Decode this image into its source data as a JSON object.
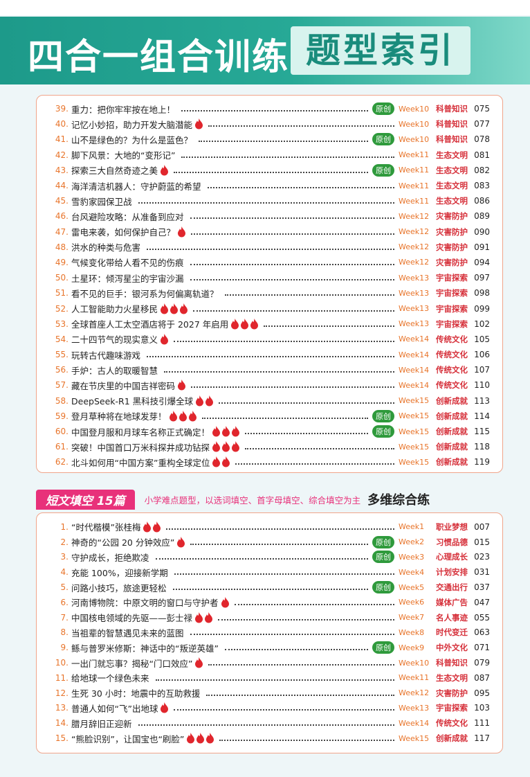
{
  "header": {
    "title": "四合一组合训练",
    "subtitle": "题型索引"
  },
  "section1": {
    "entries": [
      {
        "no": "39.",
        "title": "重力：把你牢牢按在地上！",
        "flames": 0,
        "badge": "原创",
        "week": "Week10",
        "topic": "科普知识",
        "page": "075"
      },
      {
        "no": "40.",
        "title": "记忆小妙招，助力开发大脑潜能",
        "flames": 1,
        "week": "Week10",
        "topic": "科普知识",
        "page": "077"
      },
      {
        "no": "41.",
        "title": "山不是绿色的？为什么是蓝色？",
        "flames": 0,
        "badge": "原创",
        "week": "Week10",
        "topic": "科普知识",
        "page": "078"
      },
      {
        "no": "42.",
        "title": "脚下风景：大地的“变形记”",
        "flames": 0,
        "week": "Week11",
        "topic": "生态文明",
        "page": "081"
      },
      {
        "no": "43.",
        "title": "探索三大自然奇迹之美",
        "flames": 1,
        "badge": "原创",
        "week": "Week11",
        "topic": "生态文明",
        "page": "082"
      },
      {
        "no": "44.",
        "title": "海洋清洁机器人：守护蔚蓝的希望",
        "flames": 0,
        "week": "Week11",
        "topic": "生态文明",
        "page": "083"
      },
      {
        "no": "45.",
        "title": "雪豹家园保卫战",
        "flames": 0,
        "week": "Week11",
        "topic": "生态文明",
        "page": "086"
      },
      {
        "no": "46.",
        "title": "台风避险攻略：从准备到应对",
        "flames": 0,
        "week": "Week12",
        "topic": "灾害防护",
        "page": "089"
      },
      {
        "no": "47.",
        "title": "雷电来袭，如何保护自己？",
        "flames": 1,
        "week": "Week12",
        "topic": "灾害防护",
        "page": "090"
      },
      {
        "no": "48.",
        "title": "洪水的种类与危害",
        "flames": 0,
        "week": "Week12",
        "topic": "灾害防护",
        "page": "091"
      },
      {
        "no": "49.",
        "title": "气候变化带给人看不见的伤痕",
        "flames": 0,
        "week": "Week12",
        "topic": "灾害防护",
        "page": "094"
      },
      {
        "no": "50.",
        "title": "土星环：倾泻星尘的宇宙沙漏",
        "flames": 0,
        "week": "Week13",
        "topic": "宇宙探索",
        "page": "097"
      },
      {
        "no": "51.",
        "title": "看不见的巨手：银河系为何偏离轨道？",
        "flames": 0,
        "week": "Week13",
        "topic": "宇宙探索",
        "page": "098"
      },
      {
        "no": "52.",
        "title": "人工智能助力火星移民",
        "flames": 3,
        "week": "Week13",
        "topic": "宇宙探索",
        "page": "099"
      },
      {
        "no": "53.",
        "title": "全球首座人工太空酒店将于 2027 年启用",
        "flames": 3,
        "week": "Week13",
        "topic": "宇宙探索",
        "page": "102"
      },
      {
        "no": "54.",
        "title": "二十四节气的现实意义",
        "flames": 1,
        "week": "Week14",
        "topic": "传统文化",
        "page": "105"
      },
      {
        "no": "55.",
        "title": "玩转古代趣味游戏",
        "flames": 0,
        "week": "Week14",
        "topic": "传统文化",
        "page": "106"
      },
      {
        "no": "56.",
        "title": "手炉：古人的取暖智慧",
        "flames": 0,
        "week": "Week14",
        "topic": "传统文化",
        "page": "107"
      },
      {
        "no": "57.",
        "title": "藏在节庆里的中国吉祥密码",
        "flames": 1,
        "week": "Week14",
        "topic": "传统文化",
        "page": "110"
      },
      {
        "no": "58.",
        "title": "DeepSeek-R1 黑科技引爆全球",
        "flames": 2,
        "week": "Week15",
        "topic": "创新成就",
        "page": "113"
      },
      {
        "no": "59.",
        "title": "登月草种将在地球发芽！",
        "flames": 3,
        "badge": "原创",
        "week": "Week15",
        "topic": "创新成就",
        "page": "114"
      },
      {
        "no": "60.",
        "title": "中国登月服和月球车名称正式确定！",
        "flames": 3,
        "badge": "原创",
        "week": "Week15",
        "topic": "创新成就",
        "page": "115"
      },
      {
        "no": "61.",
        "title": "突破！中国首口万米科探井成功钻探",
        "flames": 3,
        "week": "Week15",
        "topic": "创新成就",
        "page": "118"
      },
      {
        "no": "62.",
        "title": "北斗如何用“中国方案”重构全球定位",
        "flames": 2,
        "week": "Week15",
        "topic": "创新成就",
        "page": "119"
      }
    ]
  },
  "section2": {
    "banner": {
      "label": "短文填空 15篇",
      "description": "小学难点题型，以选词填空、首字母填空、综合填空为主",
      "tag": "多维综合练"
    },
    "entries": [
      {
        "no": "1.",
        "title": "“时代楷模”张桂梅",
        "flames": 2,
        "week": "Week1",
        "topic": "职业梦想",
        "page": "007"
      },
      {
        "no": "2.",
        "title": "神奇的“公园 20 分钟效应”",
        "flames": 1,
        "badge": "原创",
        "week": "Week2",
        "topic": "习惯品德",
        "page": "015"
      },
      {
        "no": "3.",
        "title": "守护成长，拒绝欺凌",
        "flames": 0,
        "badge": "原创",
        "week": "Week3",
        "topic": "心理成长",
        "page": "023"
      },
      {
        "no": "4.",
        "title": "充能 100%，迎接新学期",
        "flames": 0,
        "week": "Week4",
        "topic": "计划安排",
        "page": "031"
      },
      {
        "no": "5.",
        "title": "问路小技巧，旅途更轻松",
        "flames": 0,
        "badge": "原创",
        "week": "Week5",
        "topic": "交通出行",
        "page": "037"
      },
      {
        "no": "6.",
        "title": "河南博物院：中原文明的窗口与守护者",
        "flames": 1,
        "week": "Week6",
        "topic": "媒体广告",
        "page": "047"
      },
      {
        "no": "7.",
        "title": "中国核电领域的先驱——彭士禄",
        "flames": 2,
        "week": "Week7",
        "topic": "名人事迹",
        "page": "055"
      },
      {
        "no": "8.",
        "title": "当祖辈的智慧遇见未来的蓝图",
        "flames": 0,
        "week": "Week8",
        "topic": "时代变迁",
        "page": "063"
      },
      {
        "no": "9.",
        "title": "鲧与普罗米修斯：神话中的“叛逆英雄”",
        "flames": 0,
        "badge": "原创",
        "week": "Week9",
        "topic": "中外文化",
        "page": "071"
      },
      {
        "no": "10.",
        "title": "一出门就忘事？揭秘“门口效应”",
        "flames": 1,
        "week": "Week10",
        "topic": "科普知识",
        "page": "079"
      },
      {
        "no": "11.",
        "title": "给地球一个绿色未来",
        "flames": 0,
        "week": "Week11",
        "topic": "生态文明",
        "page": "087"
      },
      {
        "no": "12.",
        "title": "生死 30 小时：地震中的互助救援",
        "flames": 0,
        "week": "Week12",
        "topic": "灾害防护",
        "page": "095"
      },
      {
        "no": "13.",
        "title": "普通人如何“飞”出地球",
        "flames": 1,
        "week": "Week13",
        "topic": "宇宙探索",
        "page": "103"
      },
      {
        "no": "14.",
        "title": "腊月辞旧正迎新",
        "flames": 0,
        "week": "Week14",
        "topic": "传统文化",
        "page": "111"
      },
      {
        "no": "15.",
        "title": "“熊脸识别”，让国宝也“刷脸”",
        "flames": 3,
        "week": "Week15",
        "topic": "创新成就",
        "page": "117"
      }
    ]
  }
}
